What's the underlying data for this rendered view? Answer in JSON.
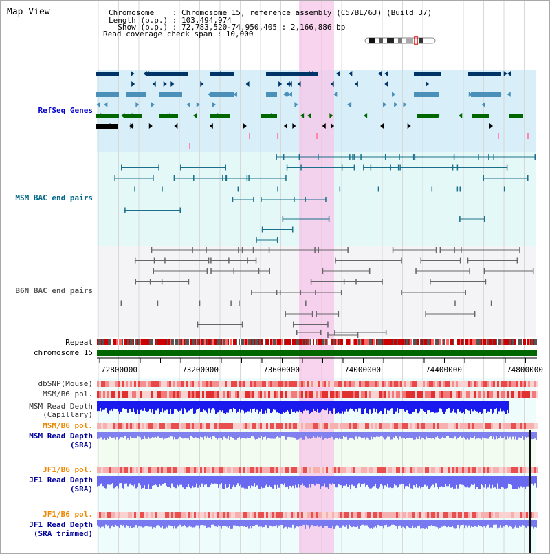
{
  "header": {
    "title": "Map View",
    "info_lines": [
      "Chromosome    : Chromosome 15, reference assembly (C57BL/6J) (Build 37)",
      "Length (b.p.) : 103,494,974",
      "  Show (b.p.) : 72,783,520-74,950,405 : 2,166,886 bp",
      "Read coverage check span : 10,000"
    ]
  },
  "tracks": {
    "refseq": "RefSeq Genes",
    "msm_bac": "MSM BAC end pairs",
    "b6n_bac": "B6N BAC end pairs",
    "repeat": "Repeat",
    "chromosome": "chromosome 15",
    "dbsnp": "dbSNP(Mouse)",
    "msm_b6_pol_1": "MSM/B6 pol.",
    "msm_read_depth_cap": [
      "MSM Read Depth",
      "(Capillary)"
    ],
    "msm_b6_pol_2": "MSM/B6 pol.",
    "msm_read_depth_sra": [
      "MSM Read Depth",
      "(SRA)"
    ],
    "jf1_b6_pol_1": "JF1/B6 pol.",
    "jf1_read_depth_sra": [
      "JF1 Read Depth",
      "(SRA)"
    ],
    "jf1_b6_pol_2": "JF1/B6 pol.",
    "jf1_read_depth_trim": [
      "JF1 Read Depth",
      "(SRA trimmed)"
    ]
  },
  "axis": {
    "ticks": [
      "72800000",
      "73200000",
      "73600000",
      "74000000",
      "74400000",
      "74800000"
    ]
  },
  "colors": {
    "refseq_label": "#0000cc",
    "msm_label": "#006688",
    "b6n_label": "#555555",
    "pol_label": "#ee8800",
    "read_label": "#000099",
    "highlight": "#f7c6ea"
  }
}
